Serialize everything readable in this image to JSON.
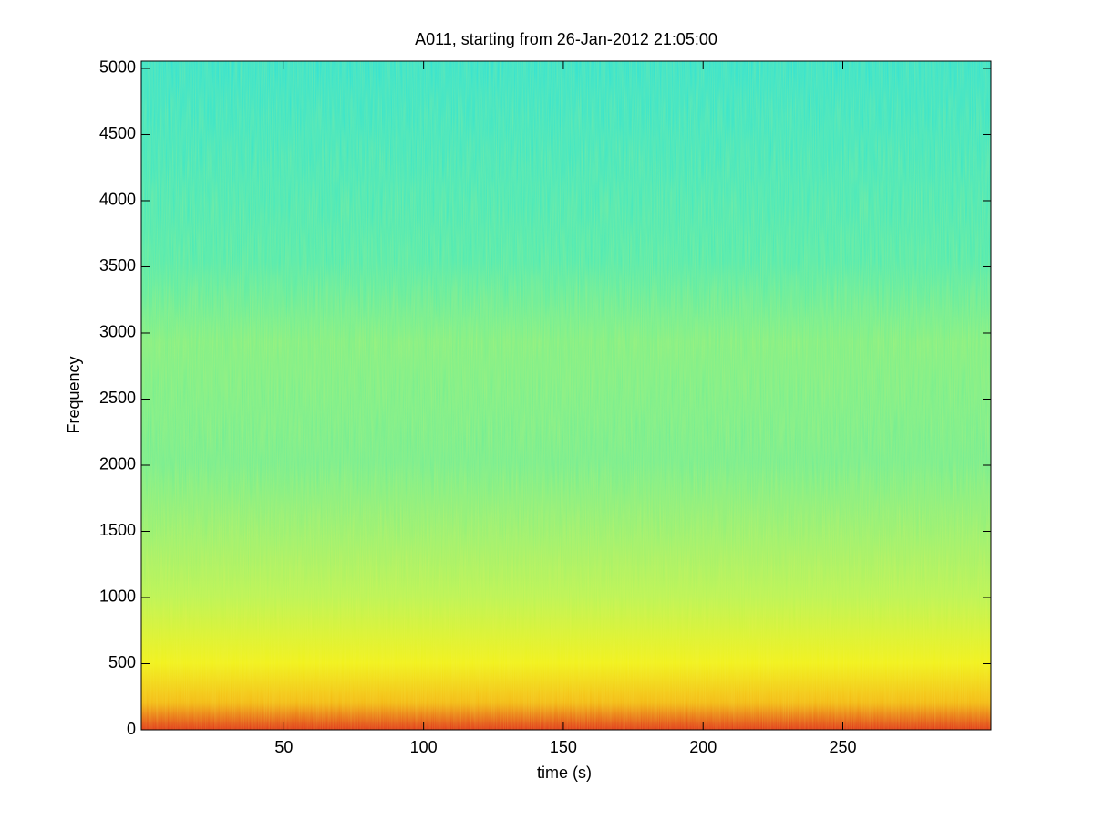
{
  "chart_data": {
    "type": "spectrogram",
    "title": "A011, starting from 26-Jan-2012 21:05:00",
    "x_label": "time (s)",
    "y_label": "Frequency",
    "xlim": [
      -1,
      303
    ],
    "xticks": [
      50,
      100,
      150,
      200,
      250
    ],
    "ylim": [
      0,
      5055
    ],
    "yticks": [
      0,
      500,
      1000,
      1500,
      2000,
      2500,
      3000,
      3500,
      4000,
      4500,
      5000
    ],
    "grid": false
  }
}
